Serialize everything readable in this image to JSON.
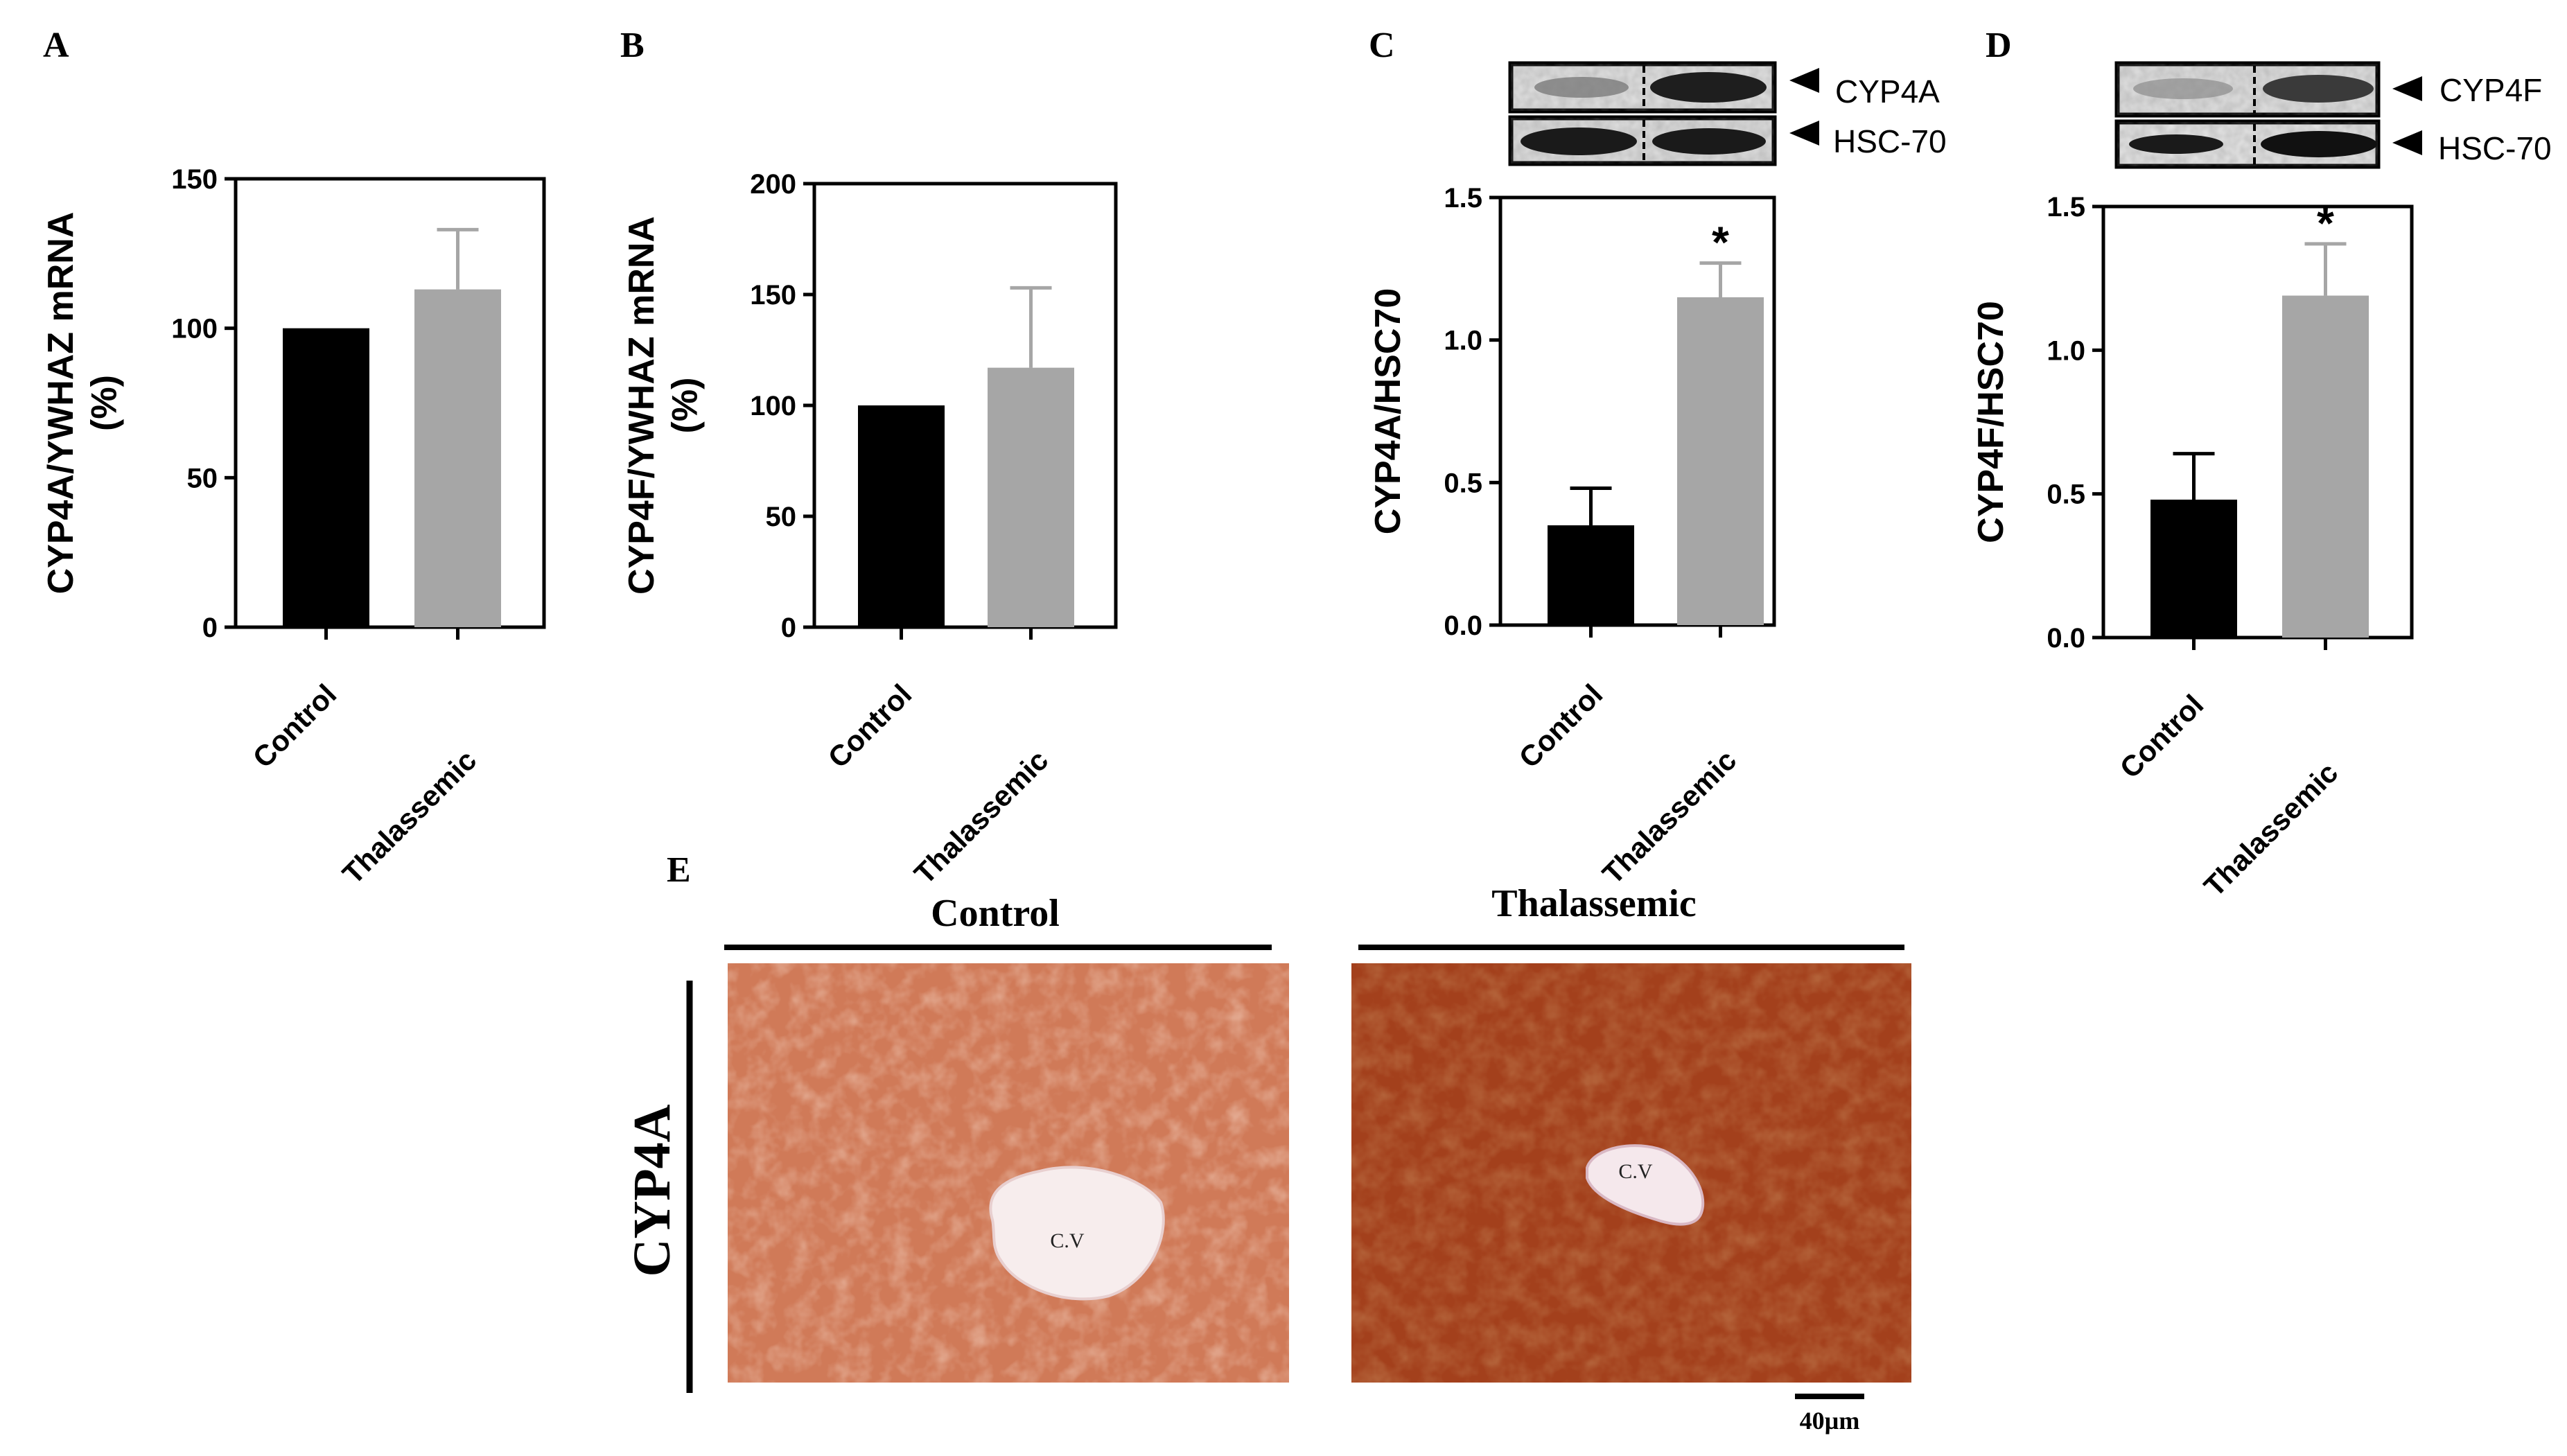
{
  "figure": {
    "panels": [
      {
        "id": "A",
        "letter": "A"
      },
      {
        "id": "B",
        "letter": "B"
      },
      {
        "id": "C",
        "letter": "C",
        "blot": {
          "labels": [
            "CYP4A",
            "HSC-70"
          ]
        }
      },
      {
        "id": "D",
        "letter": "D",
        "blot": {
          "labels": [
            "CYP4F",
            "HSC-70"
          ]
        }
      },
      {
        "id": "E",
        "letter": "E"
      }
    ],
    "histology": {
      "row_label": "CYP4A",
      "columns": [
        "Control",
        "Thalassemic"
      ],
      "cv_label": "C.V",
      "scale_bar": "40µm"
    }
  },
  "colors": {
    "control": "#000000",
    "thalassemic": "#a6a6a6",
    "error_thal": "#a6a6a6",
    "tissue_light": "#c4623e",
    "tissue_dark": "#a13a18"
  },
  "chart_data": [
    {
      "panel": "A",
      "type": "bar",
      "categories": [
        "Control",
        "Thalassemic"
      ],
      "values": [
        100,
        113
      ],
      "errors": [
        0,
        20
      ],
      "ylabel": "CYP4A/YWHAZ mRNA\n(%)",
      "ylim": [
        0,
        150
      ],
      "yticks": [
        0,
        50,
        100,
        150
      ],
      "significance": [
        "",
        ""
      ]
    },
    {
      "panel": "B",
      "type": "bar",
      "categories": [
        "Control",
        "Thalassemic"
      ],
      "values": [
        100,
        117
      ],
      "errors": [
        0,
        36
      ],
      "ylabel": "CYP4F/YWHAZ mRNA\n(%)",
      "ylim": [
        0,
        200
      ],
      "yticks": [
        0,
        50,
        100,
        150,
        200
      ],
      "significance": [
        "",
        ""
      ]
    },
    {
      "panel": "C",
      "type": "bar",
      "categories": [
        "Control",
        "Thalassemic"
      ],
      "values": [
        0.35,
        1.15
      ],
      "errors": [
        0.13,
        0.12
      ],
      "ylabel": "CYP4A/HSC70",
      "ylim": [
        0,
        1.5
      ],
      "yticks": [
        "0.0",
        "0.5",
        "1.0",
        "1.5"
      ],
      "significance": [
        "",
        "*"
      ]
    },
    {
      "panel": "D",
      "type": "bar",
      "categories": [
        "Control",
        "Thalassemic"
      ],
      "values": [
        0.48,
        1.19
      ],
      "errors": [
        0.16,
        0.18
      ],
      "ylabel": "CYP4F/HSC70",
      "ylim": [
        0,
        1.5
      ],
      "yticks": [
        "0.0",
        "0.5",
        "1.0",
        "1.5"
      ],
      "significance": [
        "",
        "*"
      ]
    }
  ]
}
